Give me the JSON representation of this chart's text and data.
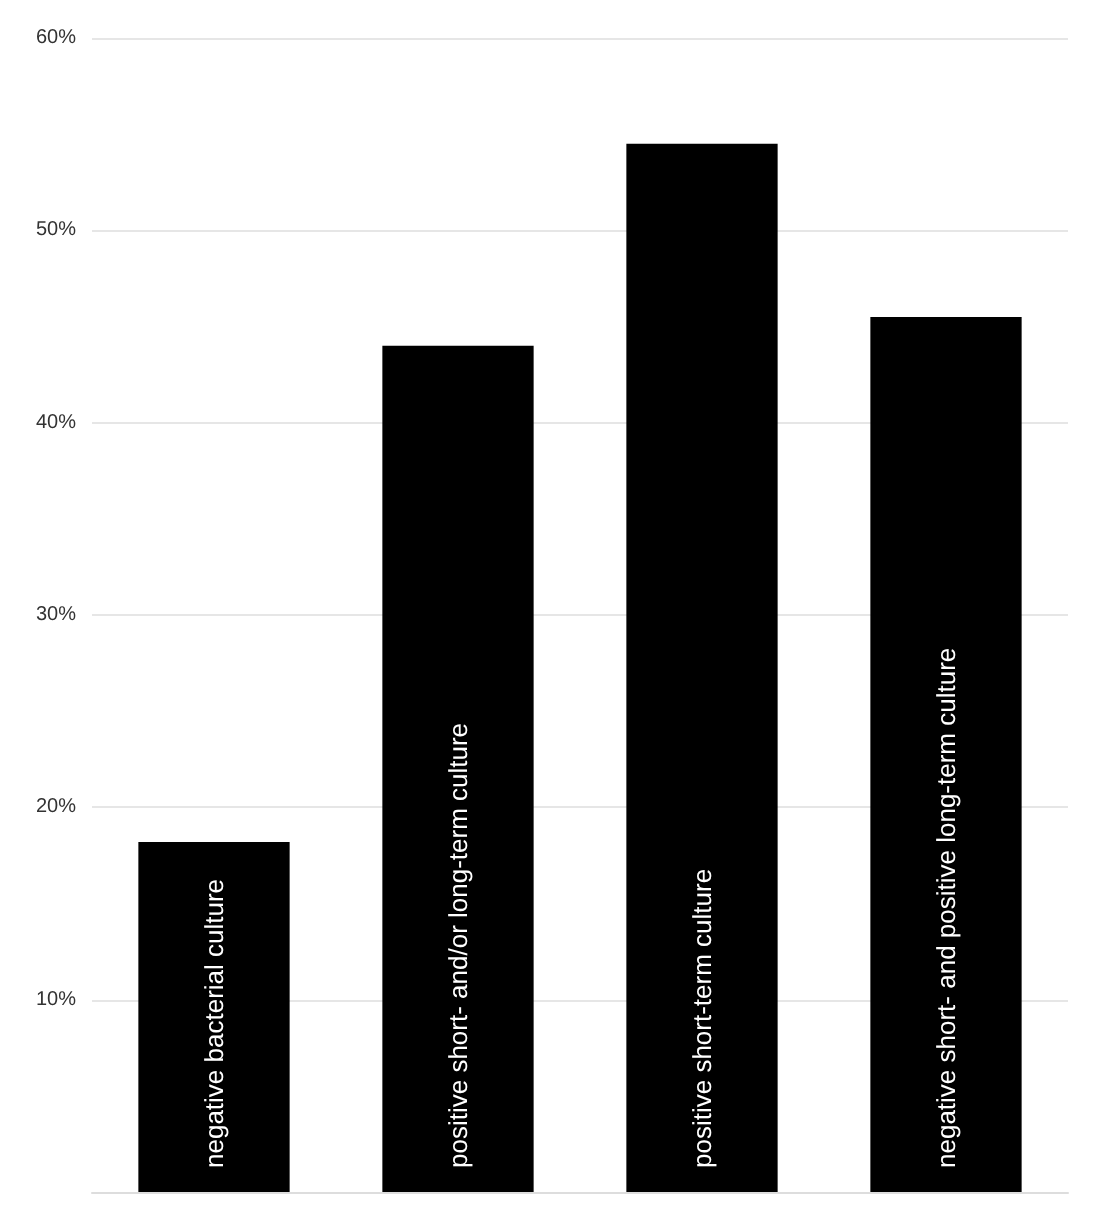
{
  "chart_data": {
    "type": "bar",
    "categories": [
      "negative bacterial culture",
      "positive short- and/or long-term culture",
      "positive short-term culture",
      "negative short- and positive long-term culture"
    ],
    "values": [
      18.2,
      44.0,
      54.5,
      45.5
    ],
    "color": "#000000",
    "ylim": [
      0,
      60
    ],
    "yticks": [
      {
        "value": 0,
        "label": null
      },
      {
        "value": 10,
        "label": "10%"
      },
      {
        "value": 20,
        "label": "20%"
      },
      {
        "value": 30,
        "label": "30%"
      },
      {
        "value": 40,
        "label": "40%"
      },
      {
        "value": 50,
        "label": "50%"
      },
      {
        "value": 60,
        "label": "60%"
      }
    ],
    "grid": "y"
  }
}
